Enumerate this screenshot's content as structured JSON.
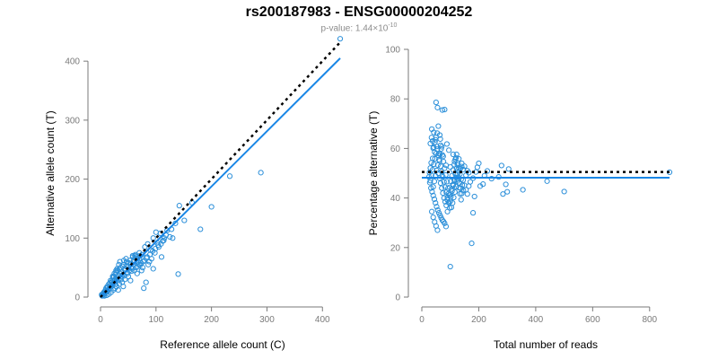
{
  "title": "rs200187983 - ENSG00000204252",
  "subtitle": {
    "prefix": "p-value: 1.44×10",
    "exponent": "-10"
  },
  "colors": {
    "points": "#2b8fd9",
    "fit_line": "#1a87e6",
    "reference_line": "#000000",
    "axis": "#7a7a7a"
  },
  "chart_data": [
    {
      "type": "scatter",
      "name": "allele-counts",
      "xlabel": "Reference allele count (C)",
      "ylabel": "Alternative allele count (T)",
      "xlim": [
        0,
        440
      ],
      "ylim": [
        0,
        420
      ],
      "xticks": [
        "0",
        "100",
        "200",
        "300",
        "400"
      ],
      "yticks": [
        "0",
        "100",
        "200",
        "300",
        "400"
      ],
      "fit_line": {
        "from": [
          0,
          0
        ],
        "to": [
          432,
          405
        ]
      },
      "reference_line": {
        "from": [
          0,
          0
        ],
        "to": [
          432,
          432
        ]
      },
      "points": [
        [
          432,
          438
        ],
        [
          289,
          211
        ],
        [
          233,
          205
        ],
        [
          200,
          153
        ],
        [
          165,
          160
        ],
        [
          142,
          155
        ],
        [
          140,
          39
        ],
        [
          151,
          130
        ],
        [
          180,
          115
        ],
        [
          120,
          113
        ],
        [
          125,
          102
        ],
        [
          100,
          110
        ],
        [
          108,
          108
        ],
        [
          115,
          100
        ],
        [
          95,
          100
        ],
        [
          130,
          100
        ],
        [
          102,
          92
        ],
        [
          85,
          90
        ],
        [
          80,
          85
        ],
        [
          90,
          80
        ],
        [
          110,
          68
        ],
        [
          75,
          72
        ],
        [
          70,
          65
        ],
        [
          88,
          60
        ],
        [
          95,
          48
        ],
        [
          82,
          25
        ],
        [
          78,
          15
        ],
        [
          65,
          58
        ],
        [
          60,
          55
        ],
        [
          55,
          50
        ],
        [
          70,
          75
        ],
        [
          62,
          70
        ],
        [
          52,
          45
        ],
        [
          48,
          42
        ],
        [
          45,
          48
        ],
        [
          40,
          38
        ],
        [
          38,
          35
        ],
        [
          35,
          40
        ],
        [
          33,
          30
        ],
        [
          30,
          28
        ],
        [
          28,
          32
        ],
        [
          25,
          25
        ],
        [
          22,
          22
        ],
        [
          20,
          18
        ],
        [
          18,
          20
        ],
        [
          16,
          15
        ],
        [
          14,
          12
        ],
        [
          12,
          10
        ],
        [
          10,
          8
        ],
        [
          8,
          6
        ],
        [
          6,
          5
        ],
        [
          5,
          3
        ],
        [
          9,
          12
        ],
        [
          13,
          16
        ],
        [
          17,
          24
        ],
        [
          21,
          28
        ],
        [
          24,
          35
        ],
        [
          27,
          38
        ],
        [
          31,
          45
        ],
        [
          36,
          50
        ],
        [
          42,
          55
        ],
        [
          47,
          60
        ],
        [
          53,
          62
        ],
        [
          58,
          68
        ],
        [
          63,
          72
        ],
        [
          68,
          60
        ],
        [
          72,
          55
        ],
        [
          76,
          50
        ],
        [
          50,
          35
        ],
        [
          44,
          30
        ],
        [
          39,
          25
        ],
        [
          34,
          22
        ],
        [
          29,
          18
        ],
        [
          26,
          15
        ],
        [
          23,
          12
        ],
        [
          19,
          8
        ],
        [
          15,
          5
        ],
        [
          11,
          3
        ],
        [
          7,
          2
        ],
        [
          32,
          12
        ],
        [
          41,
          18
        ],
        [
          54,
          28
        ],
        [
          66,
          40
        ],
        [
          74,
          45
        ],
        [
          86,
          55
        ],
        [
          92,
          65
        ],
        [
          98,
          75
        ],
        [
          105,
          85
        ],
        [
          112,
          95
        ],
        [
          118,
          105
        ],
        [
          128,
          115
        ],
        [
          135,
          125
        ],
        [
          46,
          52
        ],
        [
          51,
          58
        ],
        [
          57,
          48
        ],
        [
          61,
          45
        ],
        [
          67,
          52
        ],
        [
          73,
          58
        ],
        [
          79,
          62
        ],
        [
          84,
          68
        ],
        [
          24,
          28
        ],
        [
          27,
          22
        ],
        [
          37,
          30
        ],
        [
          43,
          36
        ],
        [
          49,
          40
        ],
        [
          56,
          44
        ],
        [
          64,
          50
        ],
        [
          69,
          55
        ],
        [
          77,
          60
        ],
        [
          83,
          66
        ],
        [
          89,
          72
        ],
        [
          94,
          78
        ],
        [
          99,
          82
        ],
        [
          104,
          88
        ],
        [
          109,
          90
        ],
        [
          114,
          96
        ],
        [
          20,
          25
        ],
        [
          26,
          30
        ],
        [
          32,
          36
        ],
        [
          38,
          42
        ],
        [
          44,
          46
        ],
        [
          50,
          52
        ],
        [
          55,
          57
        ],
        [
          60,
          62
        ],
        [
          65,
          68
        ],
        [
          71,
          70
        ],
        [
          15,
          22
        ],
        [
          18,
          28
        ],
        [
          22,
          35
        ],
        [
          28,
          42
        ],
        [
          34,
          48
        ],
        [
          40,
          52
        ],
        [
          12,
          18
        ],
        [
          10,
          15
        ],
        [
          8,
          10
        ],
        [
          6,
          8
        ],
        [
          4,
          5
        ],
        [
          3,
          2
        ],
        [
          2,
          4
        ],
        [
          35,
          60
        ],
        [
          33,
          55
        ],
        [
          30,
          48
        ],
        [
          28,
          45
        ],
        [
          25,
          40
        ],
        [
          23,
          33
        ],
        [
          42,
          62
        ],
        [
          46,
          65
        ],
        [
          58,
          70
        ],
        [
          62,
          66
        ]
      ]
    },
    {
      "type": "scatter",
      "name": "percentage-alternative",
      "xlabel": "Total number of reads",
      "ylabel": "Percentage alternative (T)",
      "xlim": [
        0,
        870
      ],
      "ylim": [
        0,
        100
      ],
      "xticks": [
        "0",
        "200",
        "400",
        "600",
        "800"
      ],
      "yticks": [
        "0",
        "20",
        "40",
        "60",
        "80",
        "100"
      ],
      "fit_line": {
        "y": 48.2,
        "xrange": [
          0,
          870
        ]
      },
      "reference_line": {
        "y": 50.5,
        "xrange": [
          0,
          870
        ]
      },
      "points": [
        [
          870,
          50.4
        ],
        [
          500,
          42.6
        ],
        [
          440,
          46.8
        ],
        [
          355,
          43.3
        ],
        [
          305,
          51.7
        ],
        [
          300,
          42.5
        ],
        [
          295,
          45.5
        ],
        [
          285,
          41.6
        ],
        [
          280,
          53.1
        ],
        [
          270,
          48.5
        ],
        [
          245,
          47.8
        ],
        [
          230,
          50.9
        ],
        [
          220,
          49.0
        ],
        [
          215,
          45.6
        ],
        [
          205,
          44.8
        ],
        [
          200,
          54.0
        ],
        [
          195,
          52.4
        ],
        [
          185,
          40.6
        ],
        [
          180,
          34.0
        ],
        [
          175,
          21.7
        ],
        [
          100,
          12.3
        ],
        [
          50,
          78.6
        ],
        [
          55,
          76.5
        ],
        [
          72,
          75.5
        ],
        [
          80,
          75.7
        ],
        [
          35,
          67.8
        ],
        [
          42,
          66.5
        ],
        [
          58,
          69.0
        ],
        [
          63,
          65.4
        ],
        [
          48,
          63.5
        ],
        [
          66,
          61.3
        ],
        [
          70,
          60.7
        ],
        [
          52,
          60.8
        ],
        [
          40,
          60.1
        ],
        [
          88,
          61.8
        ],
        [
          95,
          59.3
        ],
        [
          110,
          57.6
        ],
        [
          120,
          56.2
        ],
        [
          130,
          55.8
        ],
        [
          140,
          54.0
        ],
        [
          150,
          52.8
        ],
        [
          160,
          51.0
        ],
        [
          45,
          58.5
        ],
        [
          38,
          56.0
        ],
        [
          33,
          54.2
        ],
        [
          30,
          52.1
        ],
        [
          27,
          50.3
        ],
        [
          25,
          48.5
        ],
        [
          28,
          46.2
        ],
        [
          32,
          44.0
        ],
        [
          36,
          42.5
        ],
        [
          40,
          41.0
        ],
        [
          44,
          39.5
        ],
        [
          48,
          38.0
        ],
        [
          52,
          36.5
        ],
        [
          56,
          35.1
        ],
        [
          60,
          34.0
        ],
        [
          64,
          33.0
        ],
        [
          68,
          32.0
        ],
        [
          72,
          31.1
        ],
        [
          76,
          30.5
        ],
        [
          80,
          29.8
        ],
        [
          35,
          34.5
        ],
        [
          40,
          32.2
        ],
        [
          45,
          30.3
        ],
        [
          50,
          28.7
        ],
        [
          55,
          27.0
        ],
        [
          85,
          28.5
        ],
        [
          90,
          34.5
        ],
        [
          95,
          38.2
        ],
        [
          100,
          41.3
        ],
        [
          105,
          43.6
        ],
        [
          110,
          45.5
        ],
        [
          115,
          47.0
        ],
        [
          120,
          48.3
        ],
        [
          125,
          49.5
        ],
        [
          130,
          50.6
        ],
        [
          135,
          51.8
        ],
        [
          140,
          52.7
        ],
        [
          145,
          47.2
        ],
        [
          150,
          45.1
        ],
        [
          155,
          43.3
        ],
        [
          160,
          41.6
        ],
        [
          165,
          44.8
        ],
        [
          170,
          46.5
        ],
        [
          58,
          50.0
        ],
        [
          62,
          48.0
        ],
        [
          66,
          46.0
        ],
        [
          70,
          44.0
        ],
        [
          74,
          42.0
        ],
        [
          78,
          40.0
        ],
        [
          82,
          38.5
        ],
        [
          86,
          37.0
        ],
        [
          90,
          39.2
        ],
        [
          94,
          41.8
        ],
        [
          98,
          44.3
        ],
        [
          102,
          46.7
        ],
        [
          106,
          49.0
        ],
        [
          110,
          51.3
        ],
        [
          114,
          53.5
        ],
        [
          118,
          55.6
        ],
        [
          122,
          57.6
        ],
        [
          126,
          54.1
        ],
        [
          130,
          52.0
        ],
        [
          134,
          49.7
        ],
        [
          138,
          47.5
        ],
        [
          142,
          45.2
        ],
        [
          146,
          43.0
        ],
        [
          30,
          47.0
        ],
        [
          34,
          49.2
        ],
        [
          38,
          51.4
        ],
        [
          42,
          53.6
        ],
        [
          46,
          55.8
        ],
        [
          50,
          57.9
        ],
        [
          54,
          59.7
        ],
        [
          58,
          57.2
        ],
        [
          62,
          55.0
        ],
        [
          66,
          52.8
        ],
        [
          70,
          50.7
        ],
        [
          74,
          48.6
        ],
        [
          78,
          46.5
        ],
        [
          82,
          44.4
        ],
        [
          86,
          42.3
        ],
        [
          90,
          40.2
        ],
        [
          94,
          38.1
        ],
        [
          98,
          36.0
        ],
        [
          102,
          40.5
        ],
        [
          106,
          42.8
        ],
        [
          110,
          45.0
        ],
        [
          114,
          47.3
        ],
        [
          118,
          49.6
        ],
        [
          122,
          51.9
        ],
        [
          126,
          47.7
        ],
        [
          130,
          44.2
        ],
        [
          134,
          41.7
        ],
        [
          138,
          39.3
        ],
        [
          40,
          44.5
        ],
        [
          44,
          46.7
        ],
        [
          48,
          48.9
        ],
        [
          52,
          51.1
        ],
        [
          56,
          53.3
        ],
        [
          60,
          55.5
        ],
        [
          64,
          57.7
        ],
        [
          68,
          59.8
        ],
        [
          72,
          57.4
        ],
        [
          76,
          54.7
        ],
        [
          80,
          52.0
        ],
        [
          84,
          49.3
        ],
        [
          88,
          46.6
        ],
        [
          92,
          43.9
        ],
        [
          96,
          41.2
        ],
        [
          100,
          38.6
        ],
        [
          104,
          36.2
        ],
        [
          108,
          38.0
        ],
        [
          112,
          40.2
        ],
        [
          116,
          42.4
        ],
        [
          120,
          44.6
        ],
        [
          124,
          46.8
        ],
        [
          128,
          48.4
        ],
        [
          132,
          46.1
        ],
        [
          136,
          43.9
        ],
        [
          140,
          41.8
        ],
        [
          30,
          62.0
        ],
        [
          34,
          64.4
        ],
        [
          38,
          63.0
        ],
        [
          42,
          60.5
        ],
        [
          46,
          62.5
        ],
        [
          50,
          64.5
        ],
        [
          54,
          66.2
        ],
        [
          60,
          58.0
        ],
        [
          65,
          63.8
        ],
        [
          75,
          56.8
        ],
        [
          85,
          53.2
        ],
        [
          100,
          52.5
        ],
        [
          115,
          54.8
        ],
        [
          125,
          53.3
        ],
        [
          145,
          51.5
        ],
        [
          155,
          49.2
        ],
        [
          165,
          50.2
        ],
        [
          180,
          48.0
        ],
        [
          190,
          50.5
        ]
      ]
    }
  ]
}
